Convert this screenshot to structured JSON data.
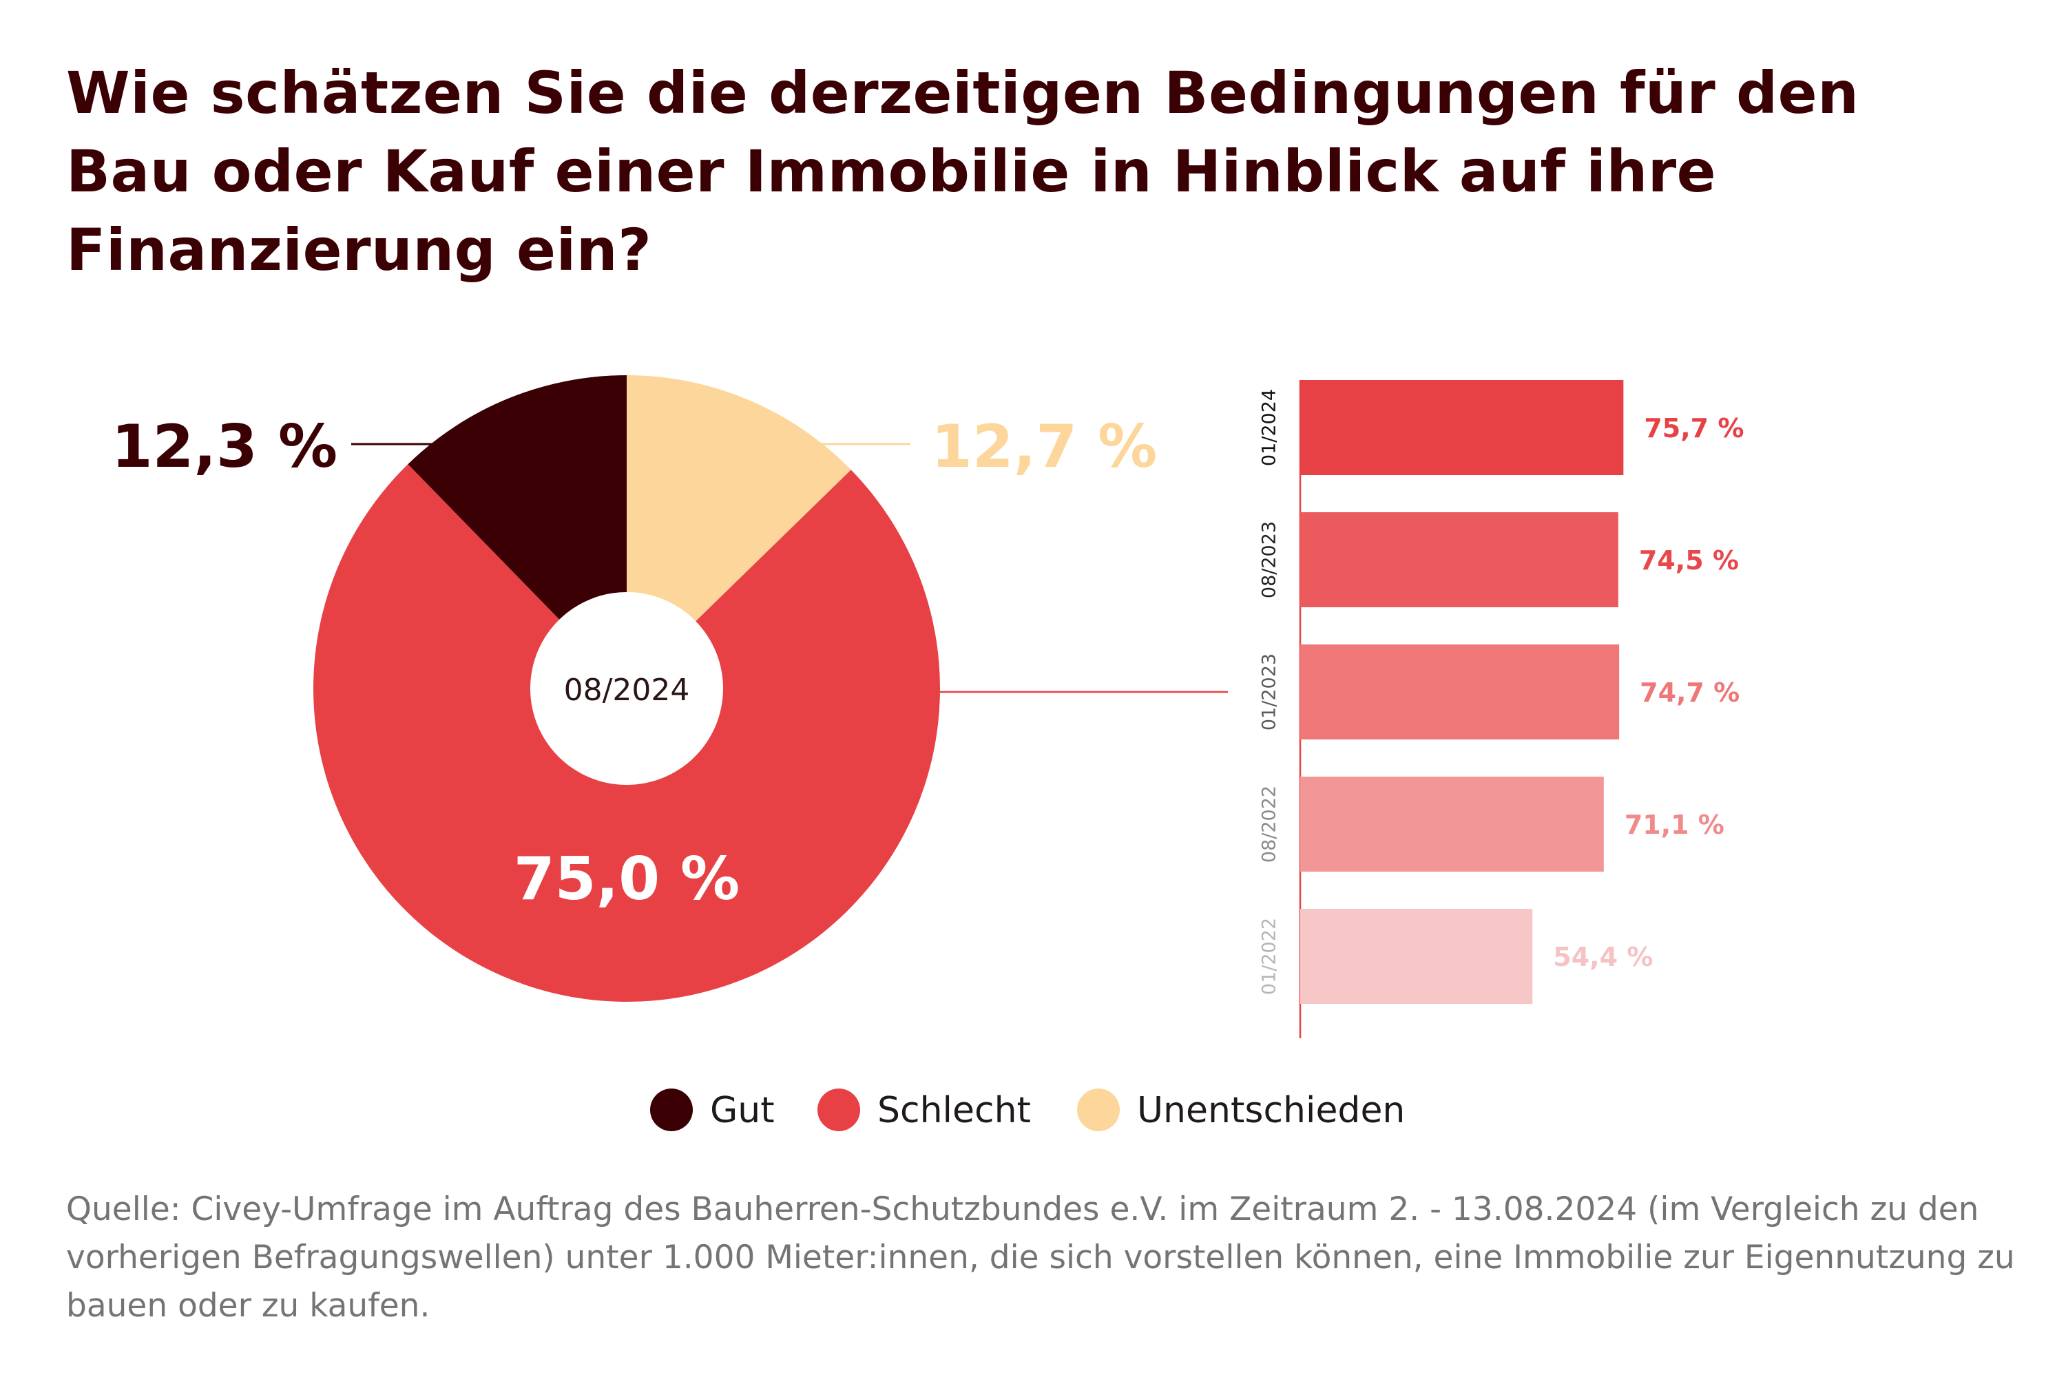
{
  "chart_data": [
    {
      "type": "pie",
      "title": "Wie schätzen Sie die derzeitigen Bedingungen für den Bau oder Kauf einer Immobilie in Hinblick auf ihre Finanzierung ein?",
      "center_label": "08/2024",
      "slices": [
        {
          "name": "Gut",
          "value": 12.3,
          "label": "12,3 %",
          "color": "#3a0003"
        },
        {
          "name": "Unentschieden",
          "value": 12.7,
          "label": "12,7 %",
          "color": "#fdd69c"
        },
        {
          "name": "Schlecht",
          "value": 75.0,
          "label": "75,0 %",
          "color": "#e84145"
        }
      ],
      "legend": {
        "placement": "bottom",
        "items": [
          {
            "name": "Gut",
            "color": "#3a0003"
          },
          {
            "name": "Schlecht",
            "color": "#e84145"
          },
          {
            "name": "Unentschieden",
            "color": "#fdd69c"
          }
        ]
      }
    },
    {
      "type": "bar",
      "orientation": "horizontal",
      "series_name": "Schlecht",
      "xlim": [
        0,
        100
      ],
      "categories": [
        "01/2024",
        "08/2023",
        "01/2023",
        "08/2022",
        "01/2022"
      ],
      "values": [
        75.7,
        74.5,
        74.7,
        71.1,
        54.4
      ],
      "labels": [
        "75,7 %",
        "74,5 %",
        "74,7 %",
        "71,1 %",
        "54,4 %"
      ],
      "bar_colors": [
        "#e84145",
        "#eb5a5d",
        "#ef7778",
        "#f39697",
        "#f7c6c7"
      ],
      "label_colors": [
        "#e84145",
        "#e8474b",
        "#ef7778",
        "#f08a8b",
        "#f6c3c4"
      ],
      "category_colors": [
        "#111111",
        "#222222",
        "#5a5a5a",
        "#8a8a8a",
        "#b5b5b5"
      ]
    }
  ],
  "source": "Quelle: Civey-Umfrage im Auftrag des Bauherren-Schutzbundes e.V. im Zeitraum 2. - 13.08.2024 (im Vergleich zu den vorherigen Befragungswellen) unter 1.000 Mieter:innen, die sich vorstellen können, eine Immobilie zur Eigennutzung zu bauen oder zu kaufen."
}
